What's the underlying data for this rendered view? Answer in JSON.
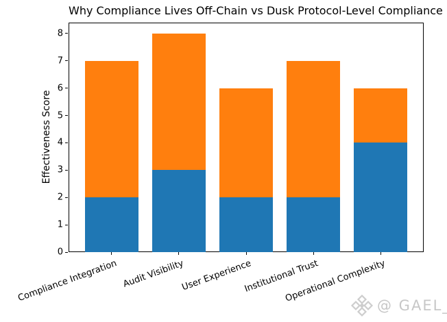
{
  "chart_data": {
    "type": "bar",
    "stacked": true,
    "title": "Why Compliance Lives Off-Chain vs Dusk Protocol-Level Compliance",
    "xlabel": "",
    "ylabel": "Effectiveness Score",
    "categories": [
      "Compliance Integration",
      "Audit Visibility",
      "User Experience",
      "Institutional Trust",
      "Operational Complexity"
    ],
    "series": [
      {
        "name": "blue-bottom-segment",
        "color": "#1f77b4",
        "values": [
          2,
          3,
          2,
          2,
          4
        ]
      },
      {
        "name": "orange-top-segment",
        "color": "#ff7f0e",
        "values": [
          5,
          5,
          4,
          5,
          2
        ]
      }
    ],
    "stack_totals": [
      7,
      8,
      6,
      7,
      6
    ],
    "yticks": [
      0,
      1,
      2,
      3,
      4,
      5,
      6,
      7,
      8
    ],
    "ylim": [
      0,
      8.4
    ],
    "grid": false,
    "legend": "none",
    "xtick_rotation_deg": 20
  },
  "watermark": {
    "logo": "diamond-cluster-logo",
    "text": "@ GAEL_",
    "color": "#cdcdcd"
  }
}
